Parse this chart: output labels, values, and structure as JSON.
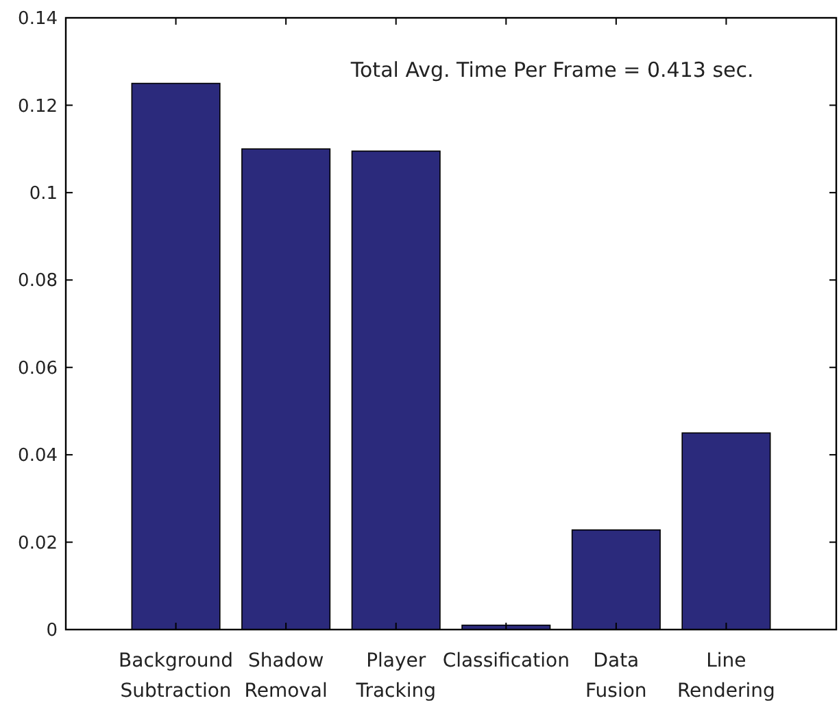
{
  "chart_data": {
    "type": "bar",
    "categories": [
      "Background Subtraction",
      "Shadow Removal",
      "Player Tracking",
      "Classification",
      "Data Fusion",
      "Line Rendering"
    ],
    "values": [
      0.125,
      0.11,
      0.1095,
      0.001,
      0.0228,
      0.045
    ],
    "color": "#2b2a7c",
    "ylim": [
      0,
      0.14
    ],
    "yticks": [
      0,
      0.02,
      0.04,
      0.06,
      0.08,
      0.1,
      0.12,
      0.14
    ],
    "annotations": [
      "Total Avg. Time Per Frame = 0.413 sec."
    ],
    "grid": false
  }
}
